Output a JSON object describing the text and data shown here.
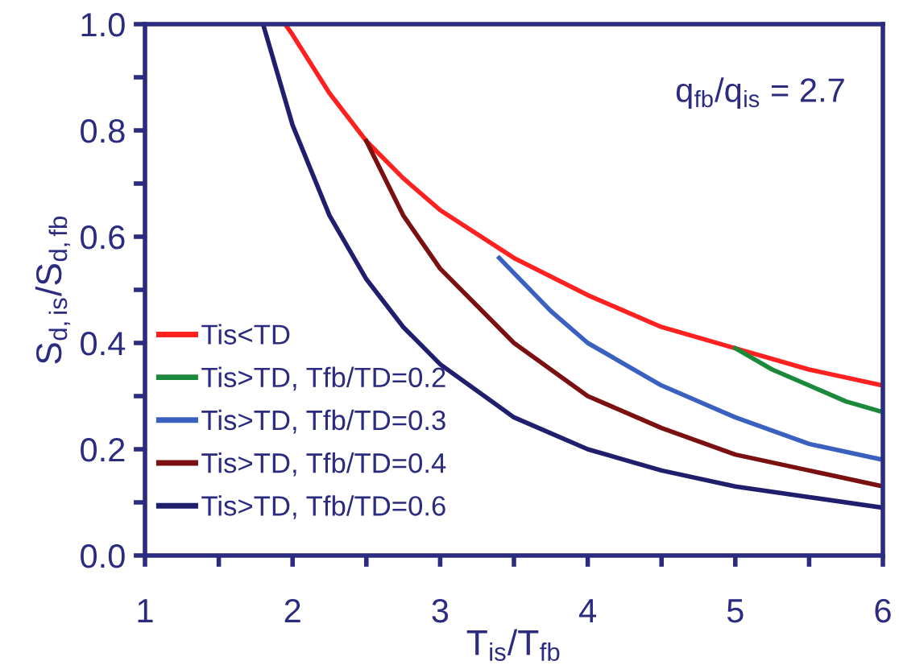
{
  "chart_data": {
    "type": "line",
    "xlabel": "T$_{is}$/T$_{fb}$",
    "ylabel": "S$_{d,is}$/S$_{d,fb}$",
    "annotations": [
      "q$_{fb}$/q$_{is}$ = 2.7"
    ],
    "xlim": [
      1,
      6
    ],
    "ylim": [
      0,
      1
    ],
    "xticks": [
      1,
      {
        "value": 1.5,
        "label": null
      },
      2,
      {
        "value": 2.5,
        "label": null
      },
      3,
      {
        "value": 3.5,
        "label": null
      },
      4,
      {
        "value": 4.5,
        "label": null
      },
      5,
      {
        "value": 5.5,
        "label": null
      },
      6
    ],
    "yticks": [
      {
        "value": 0,
        "label": "0.0"
      },
      {
        "value": 0.1,
        "label": null
      },
      0.2,
      {
        "value": 0.3,
        "label": null
      },
      0.4,
      {
        "value": 0.5,
        "label": null
      },
      0.6,
      {
        "value": 0.7,
        "label": null
      },
      0.8,
      {
        "value": 0.9,
        "label": null
      },
      {
        "value": 1,
        "label": "1.0"
      }
    ],
    "grid": false,
    "legend": "left",
    "marker": "none",
    "line_style": "solid",
    "series": [
      {
        "name": "Tis<TD",
        "color": "#ff2020",
        "x": [
          1.95,
          2,
          2.25,
          2.5,
          2.75,
          3,
          3.5,
          4,
          4.5,
          5,
          5.5,
          6
        ],
        "values": [
          1.0,
          0.98,
          0.87,
          0.78,
          0.71,
          0.65,
          0.56,
          0.49,
          0.43,
          0.39,
          0.35,
          0.32
        ]
      },
      {
        "name": "Tis>TD, Tfb/TD=0.2",
        "color": "#1a8a3a",
        "x": [
          5,
          5.25,
          5.5,
          5.75,
          6
        ],
        "values": [
          0.39,
          0.35,
          0.32,
          0.29,
          0.27
        ]
      },
      {
        "name": "Tis>TD, Tfb/TD=0.3",
        "color": "#3a60c0",
        "x": [
          3.4,
          3.75,
          4,
          4.5,
          5,
          5.5,
          6
        ],
        "values": [
          0.56,
          0.46,
          0.4,
          0.32,
          0.26,
          0.21,
          0.18
        ]
      },
      {
        "name": "Tis>TD, Tfb/TD=0.4",
        "color": "#7a1010",
        "x": [
          2.5,
          2.75,
          3,
          3.5,
          4,
          4.5,
          5,
          5.5,
          6
        ],
        "values": [
          0.78,
          0.64,
          0.54,
          0.4,
          0.3,
          0.24,
          0.19,
          0.16,
          0.13
        ]
      },
      {
        "name": "Tis>TD, Tfb/TD=0.6",
        "color": "#1f1f6e",
        "x": [
          1.8,
          2,
          2.25,
          2.5,
          2.75,
          3,
          3.5,
          4,
          4.5,
          5,
          5.5,
          6
        ],
        "values": [
          1.0,
          0.81,
          0.64,
          0.52,
          0.43,
          0.36,
          0.26,
          0.2,
          0.16,
          0.13,
          0.11,
          0.09
        ]
      }
    ]
  }
}
